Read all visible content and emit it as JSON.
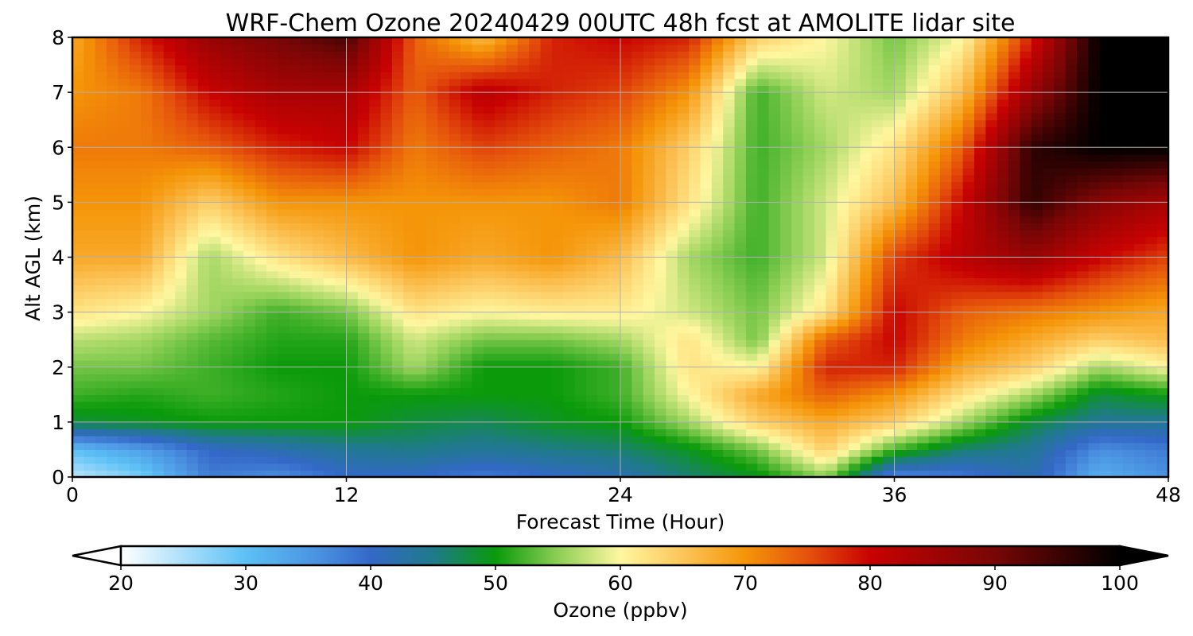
{
  "chart_data": {
    "type": "heatmap",
    "title": "WRF-Chem Ozone  20240429 00UTC 48h fcst at AMOLITE lidar site",
    "xlabel": "Forecast Time (Hour)",
    "ylabel": "Alt AGL (km)",
    "xlim": [
      0,
      48
    ],
    "ylim": [
      0,
      8
    ],
    "x_ticks": [
      "0",
      "12",
      "24",
      "36",
      "48"
    ],
    "y_ticks": [
      "0",
      "1",
      "2",
      "3",
      "4",
      "5",
      "6",
      "7",
      "8"
    ],
    "grid": true,
    "x": [
      0,
      3,
      6,
      9,
      12,
      15,
      18,
      21,
      24,
      27,
      30,
      33,
      36,
      39,
      42,
      45,
      48
    ],
    "y": [
      0,
      0.5,
      1,
      1.5,
      2,
      2.5,
      3,
      4,
      5,
      6,
      7,
      8
    ],
    "values": [
      [
        24,
        28,
        38,
        36,
        40,
        40,
        38,
        40,
        42,
        46,
        49,
        55,
        36,
        38,
        42,
        32,
        36
      ],
      [
        30,
        34,
        40,
        42,
        44,
        45,
        44,
        45,
        46,
        49,
        54,
        64,
        52,
        46,
        44,
        36,
        38
      ],
      [
        48,
        49,
        50,
        50,
        50,
        48,
        47,
        49,
        50,
        56,
        64,
        68,
        64,
        56,
        48,
        44,
        44
      ],
      [
        52,
        51,
        52,
        51,
        50,
        50,
        50,
        50,
        52,
        60,
        68,
        74,
        70,
        62,
        56,
        48,
        50
      ],
      [
        54,
        54,
        52,
        50,
        50,
        56,
        50,
        50,
        52,
        62,
        60,
        78,
        78,
        68,
        64,
        56,
        60
      ],
      [
        57,
        56,
        53,
        51,
        51,
        58,
        54,
        54,
        56,
        62,
        54,
        74,
        80,
        72,
        68,
        64,
        66
      ],
      [
        62,
        60,
        56,
        52,
        54,
        62,
        60,
        61,
        61,
        58,
        54,
        62,
        80,
        74,
        72,
        70,
        68
      ],
      [
        68,
        68,
        56,
        62,
        66,
        70,
        68,
        70,
        66,
        56,
        52,
        58,
        76,
        82,
        86,
        80,
        76
      ],
      [
        70,
        70,
        64,
        70,
        70,
        70,
        70,
        70,
        72,
        62,
        52,
        58,
        66,
        80,
        96,
        88,
        84
      ],
      [
        72,
        72,
        74,
        78,
        80,
        72,
        76,
        74,
        72,
        64,
        52,
        56,
        62,
        74,
        96,
        100,
        100
      ],
      [
        70,
        72,
        80,
        84,
        84,
        74,
        82,
        78,
        76,
        70,
        52,
        58,
        56,
        66,
        86,
        100,
        100
      ],
      [
        68,
        78,
        86,
        90,
        94,
        74,
        66,
        78,
        80,
        78,
        64,
        60,
        54,
        60,
        78,
        100,
        100
      ]
    ],
    "colorbar": {
      "label": "Ozone  (ppbv)",
      "min": 20,
      "max": 100,
      "ticks": [
        "20",
        "30",
        "40",
        "50",
        "60",
        "70",
        "80",
        "90",
        "100"
      ],
      "extend": "both",
      "colors": [
        {
          "v": 20,
          "c": "#ffffff"
        },
        {
          "v": 30,
          "c": "#5cc0f5"
        },
        {
          "v": 36,
          "c": "#4a90e0"
        },
        {
          "v": 40,
          "c": "#3468c8"
        },
        {
          "v": 45,
          "c": "#1f7a8a"
        },
        {
          "v": 50,
          "c": "#0a9a0a"
        },
        {
          "v": 55,
          "c": "#8dcf55"
        },
        {
          "v": 60,
          "c": "#fff7a0"
        },
        {
          "v": 65,
          "c": "#fcc55a"
        },
        {
          "v": 70,
          "c": "#f59508"
        },
        {
          "v": 75,
          "c": "#e5520c"
        },
        {
          "v": 80,
          "c": "#c80202"
        },
        {
          "v": 90,
          "c": "#780606"
        },
        {
          "v": 100,
          "c": "#000000"
        }
      ]
    }
  }
}
